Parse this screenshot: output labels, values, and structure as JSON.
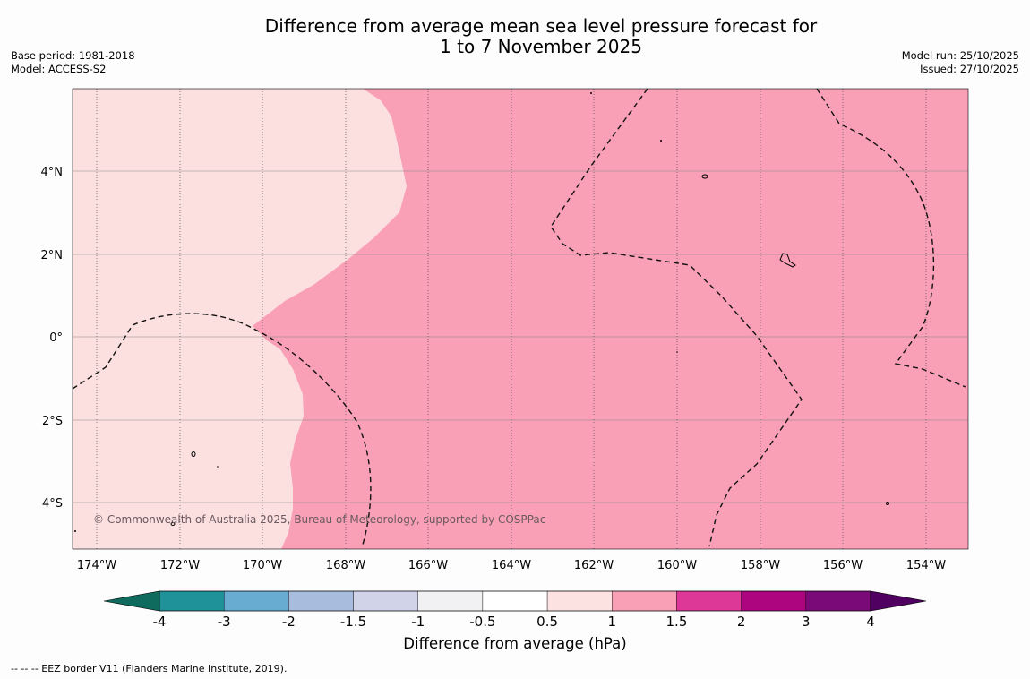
{
  "header": {
    "title_line1": "Difference from average mean sea level pressure forecast for",
    "title_line2": "1 to 7 November 2025",
    "base_period": "Base period: 1981-2018",
    "model": "Model: ACCESS-S2",
    "model_run": "Model run: 25/10/2025",
    "issued": "Issued: 27/10/2025"
  },
  "map": {
    "lon_labels": [
      "174°W",
      "172°W",
      "170°W",
      "168°W",
      "166°W",
      "164°W",
      "162°W",
      "160°W",
      "158°W",
      "156°W",
      "154°W"
    ],
    "lat_labels": [
      "4°N",
      "2°N",
      "0°",
      "2°S",
      "4°S"
    ],
    "copyright": "© Commonwealth of Australia 2025, Bureau of Meteorology, supported by COSPPac",
    "colors": {
      "light_pink": "#fcdfdf",
      "pink": "#f99fb6"
    }
  },
  "colorbar": {
    "title": "Difference from average (hPa)",
    "tick_labels": [
      "-4",
      "-3",
      "-2",
      "-1.5",
      "-1",
      "-0.5",
      "0.5",
      "1",
      "1.5",
      "2",
      "3",
      "4"
    ],
    "colors": [
      "#0f6b5e",
      "#1f9199",
      "#68acd2",
      "#a8bcdd",
      "#d1d3e8",
      "#f1f0f3",
      "#ffffff",
      "#fde2e2",
      "#f99fb6",
      "#dd3798",
      "#ad0580",
      "#7a0a78",
      "#4f0060"
    ]
  },
  "footer": {
    "eez_note": "--  --  -- EEZ border V11 (Flanders Marine Institute, 2019)."
  }
}
